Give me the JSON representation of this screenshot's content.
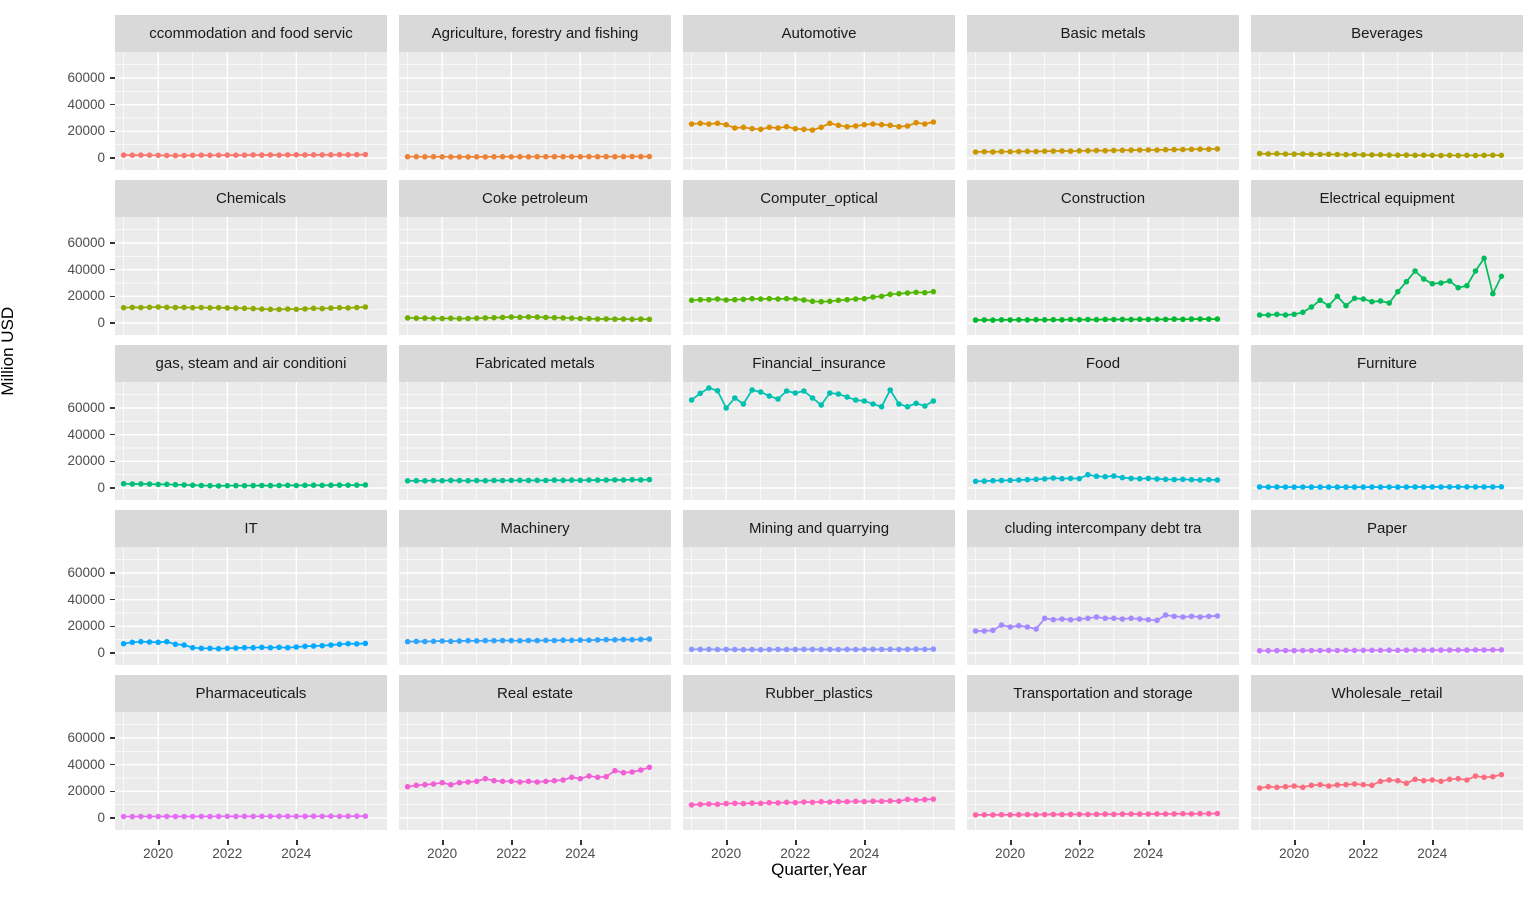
{
  "axes": {
    "y_title": "Million USD",
    "x_title": "Quarter,Year",
    "y_tick_labels": [
      "60000",
      "40000",
      "20000",
      "0"
    ],
    "x_tick_labels": [
      "2020",
      "2022",
      "2024"
    ]
  },
  "colors": {
    "panel_bg": "#EBEBEB",
    "strip_bg": "#D9D9D9",
    "grid": "#FFFFFF",
    "tick": "#333333",
    "tick_label": "#4D4D4D",
    "strip_text": "#1A1A1A"
  },
  "chart_data": {
    "type": "line",
    "facet_grid_rows": 5,
    "facet_grid_cols": 5,
    "title": "",
    "xlabel": "Quarter,Year",
    "ylabel": "Million USD",
    "ylim": [
      -9000,
      79500
    ],
    "y_major": [
      0,
      20000,
      40000,
      60000
    ],
    "y_minor": [
      10000,
      30000,
      50000,
      70000
    ],
    "x_span": [
      -1,
      30.5
    ],
    "x_major_idx": [
      4,
      12,
      20
    ],
    "x_minor_idx": [
      0,
      8,
      16,
      24,
      28
    ],
    "x_major_labels": [
      "2020",
      "2022",
      "2024"
    ],
    "x_quarters": [
      "2019Q1",
      "2019Q2",
      "2019Q3",
      "2019Q4",
      "2020Q1",
      "2020Q2",
      "2020Q3",
      "2020Q4",
      "2021Q1",
      "2021Q2",
      "2021Q3",
      "2021Q4",
      "2022Q1",
      "2022Q2",
      "2022Q3",
      "2022Q4",
      "2023Q1",
      "2023Q2",
      "2023Q3",
      "2023Q4",
      "2024Q1",
      "2024Q2",
      "2024Q3",
      "2024Q4",
      "2025Q1",
      "2025Q2",
      "2025Q3",
      "2025Q4",
      "2026Q1"
    ],
    "facets": [
      {
        "title": "ccommodation and food servic",
        "color": "#F8766D",
        "values": [
          2200,
          2100,
          2200,
          2100,
          2000,
          1900,
          1800,
          1900,
          2000,
          2100,
          2000,
          2100,
          2200,
          2100,
          2200,
          2300,
          2200,
          2300,
          2200,
          2300,
          2400,
          2300,
          2400,
          2300,
          2400,
          2500,
          2400,
          2500,
          2600
        ]
      },
      {
        "title": "Agriculture, forestry and fishing",
        "color": "#EC8239",
        "values": [
          1000,
          950,
          900,
          950,
          900,
          850,
          800,
          850,
          900,
          850,
          900,
          950,
          900,
          950,
          900,
          950,
          1000,
          950,
          1000,
          950,
          1000,
          1050,
          1000,
          1050,
          1000,
          1050,
          1100,
          1050,
          1100
        ]
      },
      {
        "title": "Automotive",
        "color": "#DB8E00",
        "values": [
          25500,
          26000,
          25500,
          26000,
          25000,
          22500,
          23000,
          22000,
          21500,
          23000,
          22500,
          23500,
          22000,
          21500,
          21000,
          23000,
          26000,
          24500,
          23500,
          24000,
          25000,
          25500,
          25000,
          24500,
          23500,
          24000,
          26500,
          25500,
          27000
        ]
      },
      {
        "title": "Basic metals",
        "color": "#C79800",
        "values": [
          4500,
          4700,
          4600,
          4800,
          4700,
          4900,
          5000,
          4900,
          5100,
          5200,
          5300,
          5200,
          5400,
          5500,
          5600,
          5500,
          5700,
          5800,
          5900,
          6000,
          6100,
          6000,
          6200,
          6300,
          6400,
          6500,
          6700,
          6600,
          6800
        ]
      },
      {
        "title": "Beverages",
        "color": "#AEA200",
        "values": [
          3300,
          3100,
          3200,
          3000,
          2900,
          3000,
          2800,
          2700,
          2800,
          2600,
          2500,
          2600,
          2400,
          2300,
          2400,
          2200,
          2100,
          2200,
          2000,
          2100,
          2000,
          1900,
          2000,
          1900,
          2000,
          1900,
          2000,
          2100,
          2000
        ]
      },
      {
        "title": "Chemicals",
        "color": "#8FAA00",
        "values": [
          11500,
          11700,
          11600,
          11800,
          12000,
          11800,
          11600,
          11700,
          11500,
          11600,
          11400,
          11500,
          11300,
          11200,
          11000,
          10800,
          10500,
          10300,
          10200,
          10500,
          10300,
          10600,
          11000,
          10800,
          11200,
          11500,
          11300,
          11600,
          12000
        ]
      },
      {
        "title": "Coke petroleum",
        "color": "#6FAF00",
        "values": [
          3800,
          3600,
          3700,
          3500,
          3400,
          3500,
          3300,
          3400,
          3600,
          3800,
          4000,
          4200,
          4500,
          4300,
          4600,
          4400,
          4200,
          4000,
          3800,
          3600,
          3400,
          3200,
          3000,
          3100,
          2900,
          3000,
          2800,
          2900,
          2800
        ]
      },
      {
        "title": "Computer_optical",
        "color": "#51B700",
        "values": [
          17000,
          17500,
          17500,
          18000,
          17250,
          17500,
          17750,
          18250,
          18000,
          18250,
          18000,
          18250,
          18000,
          17250,
          16250,
          16000,
          16250,
          17000,
          17500,
          18000,
          18250,
          19500,
          20000,
          21500,
          22000,
          22500,
          23000,
          22750,
          23500
        ]
      },
      {
        "title": "Construction",
        "color": "#00B92F",
        "values": [
          2200,
          2300,
          2200,
          2400,
          2300,
          2400,
          2300,
          2500,
          2400,
          2500,
          2400,
          2600,
          2500,
          2600,
          2500,
          2700,
          2600,
          2700,
          2600,
          2800,
          2700,
          2800,
          2700,
          2900,
          2800,
          2900,
          3000,
          2900,
          3000
        ]
      },
      {
        "title": "Electrical equipment",
        "color": "#00BD5C",
        "values": [
          6000,
          6000,
          6500,
          6000,
          6500,
          8000,
          12000,
          17000,
          13000,
          20000,
          13000,
          18500,
          18000,
          16000,
          16500,
          15000,
          23500,
          31000,
          39000,
          33000,
          29500,
          30000,
          31500,
          26500,
          28000,
          39000,
          48500,
          22000,
          35000
        ]
      },
      {
        "title": "gas, steam and air conditioni",
        "color": "#00BF78",
        "values": [
          3200,
          3000,
          3100,
          2900,
          2700,
          2800,
          2500,
          2300,
          2100,
          1900,
          1700,
          1600,
          1700,
          1800,
          1700,
          1800,
          1900,
          1800,
          1900,
          2000,
          1900,
          2000,
          2100,
          2000,
          2100,
          2200,
          2100,
          2200,
          2300
        ]
      },
      {
        "title": "Fabricated metals",
        "color": "#00C093",
        "values": [
          5400,
          5500,
          5400,
          5600,
          5500,
          5700,
          5600,
          5500,
          5600,
          5500,
          5700,
          5600,
          5700,
          5800,
          5700,
          5800,
          5700,
          5900,
          5800,
          5900,
          5800,
          6000,
          5900,
          6000,
          6100,
          6000,
          6200,
          6100,
          6300
        ]
      },
      {
        "title": "Financial_insurance",
        "color": "#00C0B0",
        "values": [
          66000,
          71000,
          75000,
          73000,
          60000,
          67500,
          63000,
          73500,
          72000,
          69000,
          66750,
          72750,
          71250,
          72750,
          67500,
          62250,
          71250,
          70500,
          68250,
          66000,
          65250,
          63000,
          61000,
          73500,
          63000,
          61000,
          63500,
          61500,
          65250
        ]
      },
      {
        "title": "Food",
        "color": "#00BCCD",
        "values": [
          5000,
          5200,
          5500,
          5700,
          5800,
          6000,
          6200,
          6500,
          6800,
          7500,
          7000,
          7200,
          7000,
          10000,
          8800,
          8500,
          9000,
          7800,
          7200,
          7000,
          7200,
          6800,
          6500,
          6300,
          6500,
          6200,
          6000,
          6200,
          6000
        ]
      },
      {
        "title": "Furniture",
        "color": "#00B5EB",
        "values": [
          800,
          750,
          800,
          750,
          700,
          750,
          700,
          650,
          700,
          650,
          700,
          650,
          700,
          750,
          700,
          750,
          700,
          750,
          800,
          750,
          800,
          750,
          800,
          850,
          800,
          850,
          800,
          850,
          900
        ]
      },
      {
        "title": "IT",
        "color": "#00AAFF",
        "values": [
          7000,
          8000,
          8500,
          8250,
          8000,
          8500,
          6500,
          6000,
          4000,
          3500,
          3500,
          3250,
          3500,
          3750,
          4000,
          4000,
          4250,
          4000,
          4250,
          4000,
          4500,
          5000,
          5250,
          5500,
          6000,
          6500,
          7000,
          6800,
          7200
        ]
      },
      {
        "title": "Machinery",
        "color": "#2FA4FF",
        "values": [
          8500,
          8700,
          8600,
          8800,
          9000,
          8800,
          9000,
          9200,
          9100,
          9300,
          9200,
          9400,
          9300,
          9200,
          9400,
          9300,
          9500,
          9400,
          9600,
          9500,
          9700,
          9600,
          9800,
          10000,
          9900,
          10100,
          10000,
          10200,
          10400
        ]
      },
      {
        "title": "Mining and quarrying",
        "color": "#8C96FF",
        "values": [
          2800,
          2700,
          2800,
          2600,
          2700,
          2600,
          2500,
          2600,
          2500,
          2600,
          2700,
          2600,
          2700,
          2800,
          2700,
          2600,
          2700,
          2600,
          2700,
          2600,
          2700,
          2800,
          2700,
          2800,
          2700,
          2800,
          2900,
          2800,
          2900
        ]
      },
      {
        "title": "cluding intercompany debt tra",
        "color": "#A58AFF",
        "values": [
          16500,
          16500,
          17000,
          21000,
          19500,
          20500,
          19500,
          18000,
          26000,
          25000,
          25500,
          25000,
          25500,
          26000,
          27000,
          26000,
          26000,
          25500,
          26000,
          25500,
          25000,
          24500,
          28500,
          27500,
          27000,
          27500,
          27000,
          27500,
          27800
        ]
      },
      {
        "title": "Paper",
        "color": "#C77CFF",
        "values": [
          1800,
          1750,
          1800,
          1850,
          1800,
          1900,
          1850,
          1900,
          1950,
          1900,
          2000,
          1950,
          2000,
          2050,
          2000,
          2100,
          2050,
          2100,
          2150,
          2100,
          2200,
          2150,
          2200,
          2250,
          2200,
          2300,
          2250,
          2300,
          2400
        ]
      },
      {
        "title": "Pharmaceuticals",
        "color": "#E36EF3",
        "values": [
          1100,
          1050,
          1100,
          1150,
          1100,
          1200,
          1150,
          1100,
          1150,
          1200,
          1150,
          1200,
          1250,
          1200,
          1250,
          1200,
          1250,
          1300,
          1250,
          1300,
          1250,
          1300,
          1350,
          1300,
          1350,
          1300,
          1350,
          1400,
          1350
        ]
      },
      {
        "title": "Real estate",
        "color": "#F15FD6",
        "values": [
          23500,
          24500,
          25000,
          25500,
          26500,
          25000,
          26500,
          27000,
          27500,
          29500,
          28000,
          27500,
          27500,
          27000,
          27500,
          27000,
          27500,
          28000,
          28500,
          30500,
          29500,
          31500,
          30500,
          31000,
          35500,
          34000,
          34500,
          36000,
          38000
        ]
      },
      {
        "title": "Rubber_plastics",
        "color": "#FF61C0",
        "values": [
          9800,
          10200,
          10500,
          10300,
          10800,
          11000,
          10800,
          11200,
          11000,
          11500,
          11300,
          11800,
          11500,
          12000,
          11800,
          12200,
          12000,
          12300,
          12200,
          12500,
          12300,
          12600,
          12500,
          12800,
          12600,
          14000,
          13500,
          13800,
          14200
        ]
      },
      {
        "title": "Transportation and storage",
        "color": "#FF64A8",
        "values": [
          2300,
          2400,
          2300,
          2500,
          2400,
          2500,
          2600,
          2500,
          2600,
          2700,
          2600,
          2700,
          2800,
          2700,
          2800,
          2900,
          2800,
          2900,
          3000,
          2900,
          3000,
          3100,
          3000,
          3100,
          3200,
          3100,
          3300,
          3200,
          3400
        ]
      },
      {
        "title": "Wholesale_retail",
        "color": "#FC6C7F",
        "values": [
          22500,
          23500,
          23000,
          23500,
          24000,
          23000,
          24500,
          25000,
          24000,
          24800,
          25000,
          25500,
          25000,
          24500,
          27500,
          28500,
          28000,
          26000,
          29000,
          28000,
          28500,
          27500,
          29000,
          29500,
          28500,
          31500,
          30500,
          31000,
          32500
        ]
      }
    ]
  }
}
